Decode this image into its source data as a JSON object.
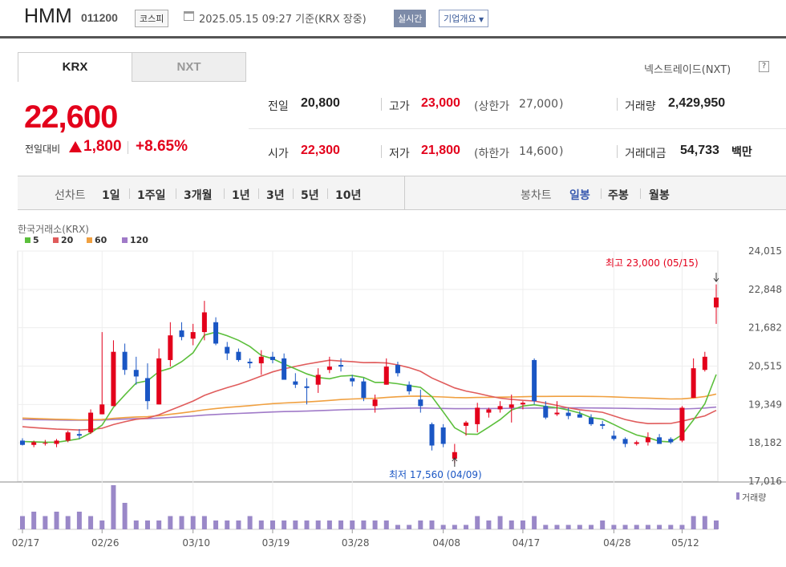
{
  "header": {
    "name": "HMM",
    "code": "011200",
    "market": "코스피",
    "datetime": "2025.05.15 09:27  기준(KRX 장중)",
    "realtime": "실시간",
    "company_info": "기업개요"
  },
  "tabs": {
    "krx": "KRX",
    "nxt": "NXT"
  },
  "nxt_link": "넥스트레이드(NXT)",
  "help": "?",
  "price": {
    "current": "22,600",
    "change_label": "전일대비",
    "change": "1,800",
    "change_pct": "+8.65%"
  },
  "stats": {
    "prev_label": "전일",
    "prev": "20,800",
    "high_label": "고가",
    "high": "23,000",
    "upper_label": "(상한가",
    "upper": "27,000",
    "upper_close": ")",
    "volume_label": "거래량",
    "volume": "2,429,950",
    "open_label": "시가",
    "open": "22,300",
    "low_label": "저가",
    "low": "21,800",
    "lower_label": "(하한가",
    "lower": "14,600",
    "lower_close": ")",
    "amount_label": "거래대금",
    "amount": "54,733",
    "amount_unit": "백만"
  },
  "periods": {
    "line_label": "선차트",
    "line_items": [
      "1일",
      "1주일",
      "3개월",
      "1년",
      "3년",
      "5년",
      "10년"
    ],
    "candle_label": "봉차트",
    "candle_items": [
      "일봉",
      "주봉",
      "월봉"
    ],
    "candle_selected": "일봉"
  },
  "colors": {
    "up": "#e3001b",
    "down": "#1a56c4",
    "ma5": "#5cbf3c",
    "ma20": "#e05c5c",
    "ma60": "#f0a040",
    "ma120": "#a07ac8",
    "volume": "#9a88c8"
  },
  "chart_data": {
    "type": "candlestick",
    "source_label": "한국거래소(KRX)",
    "legend": [
      "5",
      "20",
      "60",
      "120"
    ],
    "y_ticks": [
      "24,015",
      "22,848",
      "21,682",
      "20,515",
      "19,349",
      "18,182",
      "17,016"
    ],
    "ylim": [
      17016,
      24015
    ],
    "x_tick_labels": [
      "02/17",
      "02/26",
      "03/10",
      "03/19",
      "03/28",
      "04/08",
      "04/17",
      "04/28",
      "05/12"
    ],
    "high_annotation": "최고 23,000 (05/15)",
    "low_annotation": "최저 17,560 (04/09)",
    "volume_label": "거래량",
    "candles": [
      {
        "o": 18250,
        "h": 18320,
        "l": 18100,
        "c": 18120
      },
      {
        "o": 18120,
        "h": 18250,
        "l": 18050,
        "c": 18200
      },
      {
        "o": 18180,
        "h": 18270,
        "l": 18100,
        "c": 18180
      },
      {
        "o": 18150,
        "h": 18300,
        "l": 18050,
        "c": 18250
      },
      {
        "o": 18250,
        "h": 18550,
        "l": 18200,
        "c": 18500
      },
      {
        "o": 18450,
        "h": 18600,
        "l": 18300,
        "c": 18400
      },
      {
        "o": 18500,
        "h": 19200,
        "l": 18450,
        "c": 19100
      },
      {
        "o": 19050,
        "h": 21550,
        "l": 19050,
        "c": 19350
      },
      {
        "o": 19300,
        "h": 21300,
        "l": 19300,
        "c": 20950
      },
      {
        "o": 20950,
        "h": 21200,
        "l": 20250,
        "c": 20400
      },
      {
        "o": 20400,
        "h": 20800,
        "l": 19950,
        "c": 20200
      },
      {
        "o": 20150,
        "h": 20600,
        "l": 19200,
        "c": 19450
      },
      {
        "o": 19350,
        "h": 21050,
        "l": 19350,
        "c": 20750
      },
      {
        "o": 20700,
        "h": 21850,
        "l": 20500,
        "c": 21450
      },
      {
        "o": 21600,
        "h": 21850,
        "l": 21300,
        "c": 21400
      },
      {
        "o": 21350,
        "h": 21800,
        "l": 21150,
        "c": 21550
      },
      {
        "o": 21550,
        "h": 22500,
        "l": 21300,
        "c": 22150
      },
      {
        "o": 21850,
        "h": 22000,
        "l": 21150,
        "c": 21200
      },
      {
        "o": 21100,
        "h": 21250,
        "l": 20700,
        "c": 20900
      },
      {
        "o": 20950,
        "h": 21050,
        "l": 20650,
        "c": 20700
      },
      {
        "o": 20650,
        "h": 20750,
        "l": 20450,
        "c": 20600
      },
      {
        "o": 20600,
        "h": 21000,
        "l": 20250,
        "c": 20800
      },
      {
        "o": 20800,
        "h": 20950,
        "l": 20600,
        "c": 20700
      },
      {
        "o": 20750,
        "h": 20900,
        "l": 20150,
        "c": 20100
      },
      {
        "o": 20050,
        "h": 20300,
        "l": 19850,
        "c": 19950
      },
      {
        "o": 19900,
        "h": 20150,
        "l": 19350,
        "c": 19850
      },
      {
        "o": 19950,
        "h": 20450,
        "l": 19700,
        "c": 20250
      },
      {
        "o": 20400,
        "h": 20800,
        "l": 20300,
        "c": 20500
      },
      {
        "o": 20550,
        "h": 20750,
        "l": 20350,
        "c": 20500
      },
      {
        "o": 20150,
        "h": 20250,
        "l": 19900,
        "c": 20050
      },
      {
        "o": 20050,
        "h": 20150,
        "l": 19450,
        "c": 19550
      },
      {
        "o": 19300,
        "h": 19650,
        "l": 19100,
        "c": 19500
      },
      {
        "o": 19950,
        "h": 20750,
        "l": 19950,
        "c": 20500
      },
      {
        "o": 20550,
        "h": 20650,
        "l": 20200,
        "c": 20300
      },
      {
        "o": 19950,
        "h": 20050,
        "l": 19650,
        "c": 19750
      },
      {
        "o": 19500,
        "h": 19800,
        "l": 19100,
        "c": 19300
      },
      {
        "o": 18750,
        "h": 18800,
        "l": 17950,
        "c": 18100
      },
      {
        "o": 18650,
        "h": 18750,
        "l": 18050,
        "c": 18150
      },
      {
        "o": 17700,
        "h": 18150,
        "l": 17560,
        "c": 17900
      },
      {
        "o": 18700,
        "h": 18850,
        "l": 18400,
        "c": 18800
      },
      {
        "o": 18750,
        "h": 19400,
        "l": 18500,
        "c": 19250
      },
      {
        "o": 19100,
        "h": 19250,
        "l": 18950,
        "c": 19200
      },
      {
        "o": 19200,
        "h": 19450,
        "l": 19100,
        "c": 19300
      },
      {
        "o": 19250,
        "h": 19650,
        "l": 18800,
        "c": 19350
      },
      {
        "o": 19350,
        "h": 19450,
        "l": 19200,
        "c": 19400
      },
      {
        "o": 20700,
        "h": 20750,
        "l": 19350,
        "c": 19450
      },
      {
        "o": 19300,
        "h": 19450,
        "l": 18900,
        "c": 18950
      },
      {
        "o": 19050,
        "h": 19450,
        "l": 19000,
        "c": 19100
      },
      {
        "o": 19100,
        "h": 19250,
        "l": 18900,
        "c": 19000
      },
      {
        "o": 19050,
        "h": 19150,
        "l": 18950,
        "c": 18950
      },
      {
        "o": 18950,
        "h": 19050,
        "l": 18700,
        "c": 18750
      },
      {
        "o": 18750,
        "h": 18850,
        "l": 18600,
        "c": 18700
      },
      {
        "o": 18400,
        "h": 18550,
        "l": 18250,
        "c": 18300
      },
      {
        "o": 18300,
        "h": 18350,
        "l": 18050,
        "c": 18150
      },
      {
        "o": 18150,
        "h": 18250,
        "l": 18100,
        "c": 18200
      },
      {
        "o": 18200,
        "h": 18500,
        "l": 18100,
        "c": 18350
      },
      {
        "o": 18350,
        "h": 18450,
        "l": 18150,
        "c": 18150
      },
      {
        "o": 18300,
        "h": 18350,
        "l": 18150,
        "c": 18200
      },
      {
        "o": 18250,
        "h": 19300,
        "l": 18200,
        "c": 19250
      },
      {
        "o": 19550,
        "h": 20750,
        "l": 19550,
        "c": 20450
      },
      {
        "o": 20400,
        "h": 20950,
        "l": 20350,
        "c": 20800
      },
      {
        "o": 22300,
        "h": 23000,
        "l": 21800,
        "c": 22600
      }
    ],
    "volumes": [
      3,
      4,
      3,
      4,
      3,
      4,
      3,
      2,
      10,
      6,
      2,
      2,
      2,
      3,
      3,
      3,
      3,
      2,
      2,
      2,
      3,
      2,
      2,
      2,
      2,
      2,
      2,
      2,
      2,
      2,
      2,
      2,
      2,
      1,
      1,
      2,
      2,
      1,
      1,
      1,
      3,
      2,
      3,
      2,
      2,
      3,
      1,
      1,
      1,
      1,
      1,
      2,
      1,
      1,
      1,
      1,
      1,
      1,
      1,
      3,
      3,
      2
    ]
  }
}
